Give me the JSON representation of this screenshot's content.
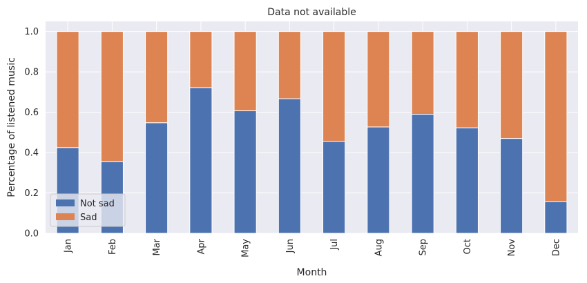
{
  "chart_data": {
    "type": "bar",
    "stacked": true,
    "title": "Data not available",
    "xlabel": "Month",
    "ylabel": "Percentage of listened music",
    "categories": [
      "Jan",
      "Feb",
      "Mar",
      "Apr",
      "May",
      "Jun",
      "Jul",
      "Aug",
      "Sep",
      "Oct",
      "Nov",
      "Dec"
    ],
    "series": [
      {
        "name": "Not sad",
        "color": "#4c72b0",
        "values": [
          0.425,
          0.355,
          0.548,
          0.722,
          0.607,
          0.667,
          0.456,
          0.527,
          0.59,
          0.523,
          0.47,
          0.158
        ]
      },
      {
        "name": "Sad",
        "color": "#dd8452",
        "values": [
          0.575,
          0.645,
          0.452,
          0.278,
          0.393,
          0.333,
          0.544,
          0.473,
          0.41,
          0.477,
          0.53,
          0.842
        ]
      }
    ],
    "ylim": [
      0,
      1.05
    ],
    "yticks": [
      "0.0",
      "0.2",
      "0.4",
      "0.6",
      "0.8",
      "1.0"
    ],
    "grid": true,
    "background": "#eaeaf2",
    "legend_position": "lower-left"
  }
}
